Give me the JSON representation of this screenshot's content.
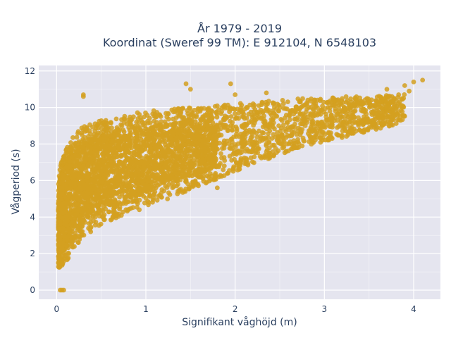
{
  "chart_data": {
    "type": "scatter",
    "title_line1": "År 1979 - 2019",
    "title_line2": "Koordinat (Sweref 99 TM): E 912104, N 6548103",
    "xlabel": "Signifikant våghöjd (m)",
    "ylabel": "Vågperiod (s)",
    "xlim": [
      -0.2,
      4.3
    ],
    "ylim": [
      -0.5,
      12.3
    ],
    "xticks": [
      0,
      1,
      2,
      3,
      4
    ],
    "yticks": [
      0,
      2,
      4,
      6,
      8,
      10,
      12
    ],
    "grid": true,
    "marker_color": "#d4a020",
    "plot_background": "#e5e5ef",
    "envelope": {
      "x": [
        0.02,
        0.05,
        0.1,
        0.2,
        0.3,
        0.5,
        0.75,
        1.0,
        1.25,
        1.5,
        1.75,
        2.0,
        2.25,
        2.5,
        2.75,
        3.0,
        3.25,
        3.5,
        3.75,
        3.9
      ],
      "y_lower": [
        1.2,
        1.3,
        1.5,
        2.3,
        2.9,
        3.6,
        4.1,
        4.5,
        5.0,
        5.5,
        6.0,
        6.5,
        7.0,
        7.4,
        7.8,
        8.1,
        8.4,
        8.7,
        9.0,
        9.3
      ],
      "y_upper": [
        6.0,
        7.0,
        7.8,
        8.5,
        9.0,
        9.3,
        9.6,
        9.8,
        9.9,
        10.0,
        10.1,
        10.2,
        10.3,
        10.4,
        10.5,
        10.5,
        10.6,
        10.6,
        10.7,
        10.8
      ]
    },
    "outliers": [
      {
        "x": 0.3,
        "y": 10.7
      },
      {
        "x": 0.3,
        "y": 10.6
      },
      {
        "x": 0.04,
        "y": 0.0
      },
      {
        "x": 0.06,
        "y": 0.0
      },
      {
        "x": 0.08,
        "y": 0.0
      },
      {
        "x": 1.45,
        "y": 11.3
      },
      {
        "x": 1.5,
        "y": 11.0
      },
      {
        "x": 1.95,
        "y": 11.3
      },
      {
        "x": 2.0,
        "y": 10.7
      },
      {
        "x": 3.7,
        "y": 11.0
      },
      {
        "x": 3.9,
        "y": 11.2
      },
      {
        "x": 4.0,
        "y": 11.4
      },
      {
        "x": 4.1,
        "y": 11.5
      },
      {
        "x": 3.95,
        "y": 10.9
      },
      {
        "x": 2.35,
        "y": 10.8
      },
      {
        "x": 0.9,
        "y": 5.2
      },
      {
        "x": 1.8,
        "y": 5.6
      },
      {
        "x": 0.7,
        "y": 4.8
      }
    ]
  }
}
